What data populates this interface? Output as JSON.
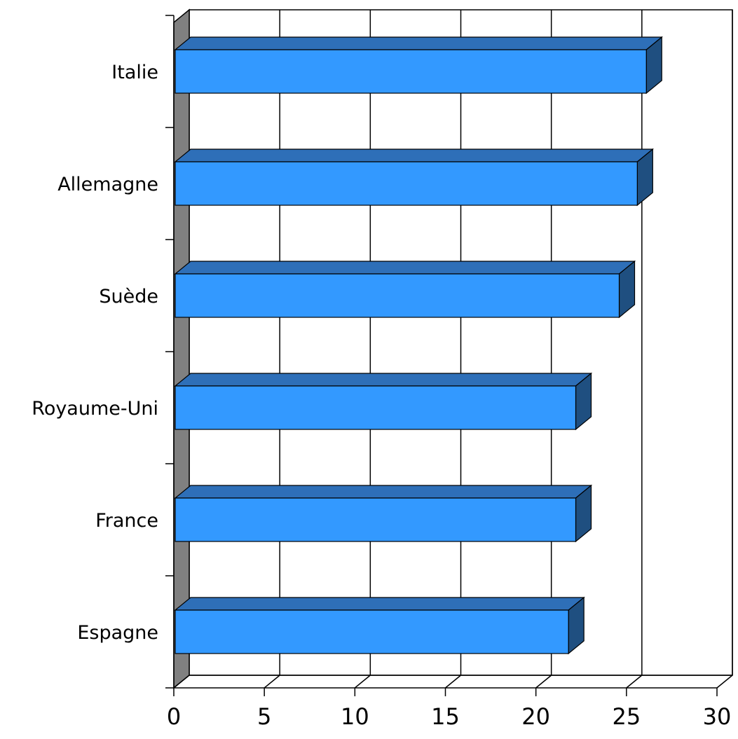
{
  "chart_data": {
    "type": "bar",
    "orientation": "horizontal",
    "style": "3d",
    "title": "",
    "xlabel": "",
    "ylabel": "",
    "categories": [
      "Italie",
      "Allemagne",
      "Suède",
      "Royaume-Uni",
      "France",
      "Espagne"
    ],
    "values": [
      26.1,
      25.6,
      24.6,
      22.2,
      22.2,
      21.8
    ],
    "xlim": [
      0,
      30
    ],
    "xticks": [
      "0",
      "5",
      "10",
      "15",
      "20",
      "25",
      "30"
    ],
    "grid": true,
    "legend": "none",
    "colors": {
      "bar_front": "#3399FF",
      "bar_top": "#2E6FB8",
      "bar_side": "#1F4F80",
      "left_wall": "#808080",
      "outline": "#000000"
    }
  }
}
